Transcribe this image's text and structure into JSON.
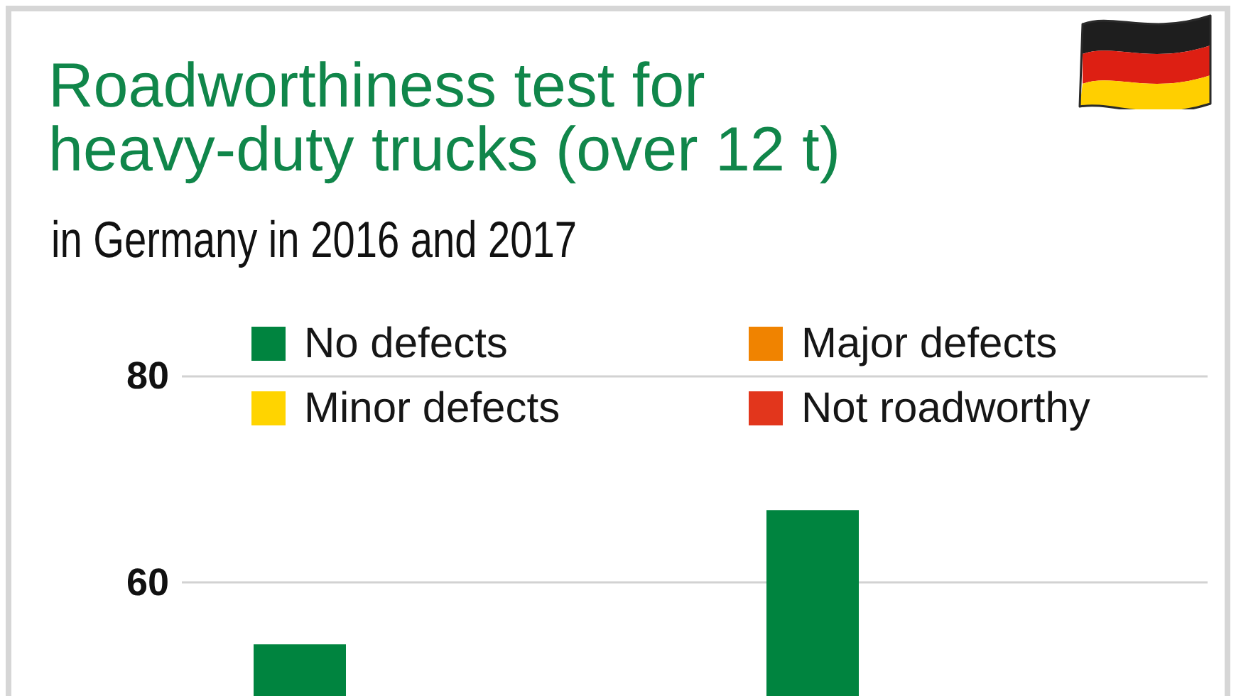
{
  "chart_data": {
    "type": "bar",
    "title": "Roadworthiness test for heavy-duty trucks (over 12 t)",
    "subtitle": "in Germany in 2016 and 2017",
    "categories": [
      null,
      null
    ],
    "series": [
      {
        "name": "No defects",
        "color": "#00843f",
        "values": [
          54,
          67
        ]
      },
      {
        "name": "Minor defects",
        "color": "#ffd400",
        "values": [
          null,
          null
        ]
      },
      {
        "name": "Major defects",
        "color": "#f08300",
        "values": [
          null,
          null
        ]
      },
      {
        "name": "Not roadworthy",
        "color": "#e2361c",
        "values": [
          null,
          null
        ]
      }
    ],
    "ylim": [
      49,
      80
    ],
    "yticks": [
      60,
      80
    ],
    "grid": "y",
    "legend": "top",
    "tick_labels": "y"
  }
}
